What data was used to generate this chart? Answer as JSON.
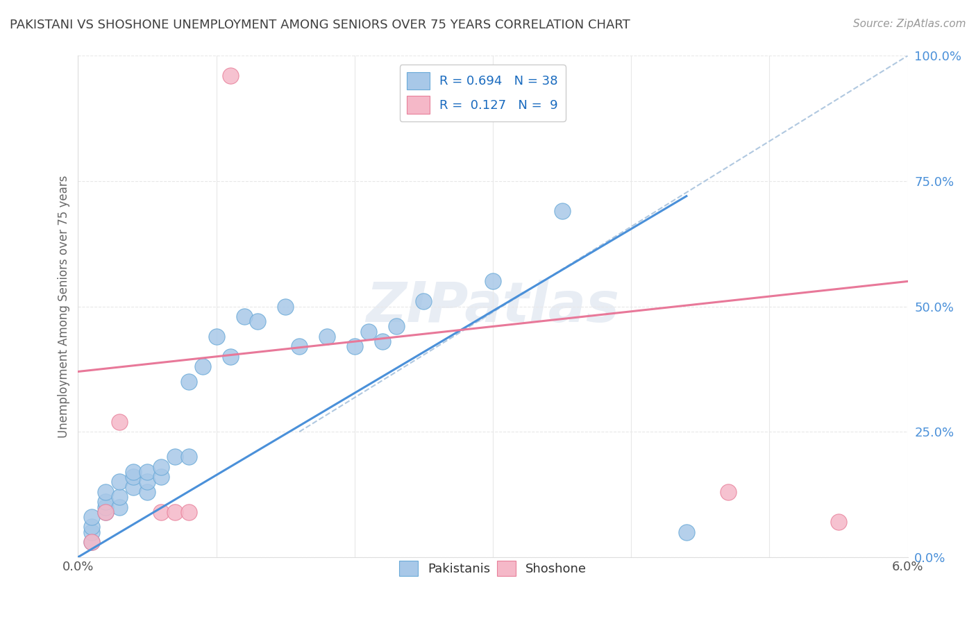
{
  "title": "PAKISTANI VS SHOSHONE UNEMPLOYMENT AMONG SENIORS OVER 75 YEARS CORRELATION CHART",
  "source": "Source: ZipAtlas.com",
  "ylabel": "Unemployment Among Seniors over 75 years",
  "ylabel_right_ticks": [
    "0.0%",
    "25.0%",
    "50.0%",
    "75.0%",
    "100.0%"
  ],
  "ylabel_right_values": [
    0.0,
    0.25,
    0.5,
    0.75,
    1.0
  ],
  "xlim": [
    0.0,
    0.06
  ],
  "ylim": [
    0.0,
    1.0
  ],
  "pakistani_r": 0.694,
  "pakistani_n": 38,
  "shoshone_r": 0.127,
  "shoshone_n": 9,
  "legend_label_1": "Pakistanis",
  "legend_label_2": "Shoshone",
  "pakistani_color": "#a8c8e8",
  "shoshone_color": "#f5b8c8",
  "pakistani_edge_color": "#6aaad8",
  "shoshone_edge_color": "#e8809a",
  "pakistani_line_color": "#4a90d9",
  "shoshone_line_color": "#e87899",
  "diagonal_color": "#b0c8e0",
  "background_color": "#ffffff",
  "grid_color": "#e8e8e8",
  "title_color": "#404040",
  "right_axis_color": "#4a90d9",
  "pakistani_scatter_x": [
    0.001,
    0.001,
    0.001,
    0.001,
    0.002,
    0.002,
    0.002,
    0.002,
    0.003,
    0.003,
    0.003,
    0.004,
    0.004,
    0.004,
    0.005,
    0.005,
    0.005,
    0.006,
    0.006,
    0.007,
    0.008,
    0.008,
    0.009,
    0.01,
    0.011,
    0.012,
    0.013,
    0.015,
    0.016,
    0.018,
    0.02,
    0.021,
    0.022,
    0.023,
    0.025,
    0.03,
    0.035,
    0.044
  ],
  "pakistani_scatter_y": [
    0.03,
    0.05,
    0.06,
    0.08,
    0.09,
    0.1,
    0.11,
    0.13,
    0.1,
    0.12,
    0.15,
    0.14,
    0.16,
    0.17,
    0.13,
    0.15,
    0.17,
    0.16,
    0.18,
    0.2,
    0.2,
    0.35,
    0.38,
    0.44,
    0.4,
    0.48,
    0.47,
    0.5,
    0.42,
    0.44,
    0.42,
    0.45,
    0.43,
    0.46,
    0.51,
    0.55,
    0.69,
    0.05
  ],
  "shoshone_scatter_x": [
    0.001,
    0.002,
    0.003,
    0.006,
    0.007,
    0.008,
    0.011,
    0.047,
    0.055
  ],
  "shoshone_scatter_y": [
    0.03,
    0.09,
    0.27,
    0.09,
    0.09,
    0.09,
    0.96,
    0.13,
    0.07
  ],
  "pakistani_line_x": [
    0.0,
    0.044
  ],
  "pakistani_line_y": [
    0.0,
    0.72
  ],
  "shoshone_line_x": [
    0.0,
    0.06
  ],
  "shoshone_line_y": [
    0.37,
    0.55
  ],
  "diag_line_x": [
    0.016,
    0.06
  ],
  "diag_line_y": [
    0.25,
    1.0
  ]
}
